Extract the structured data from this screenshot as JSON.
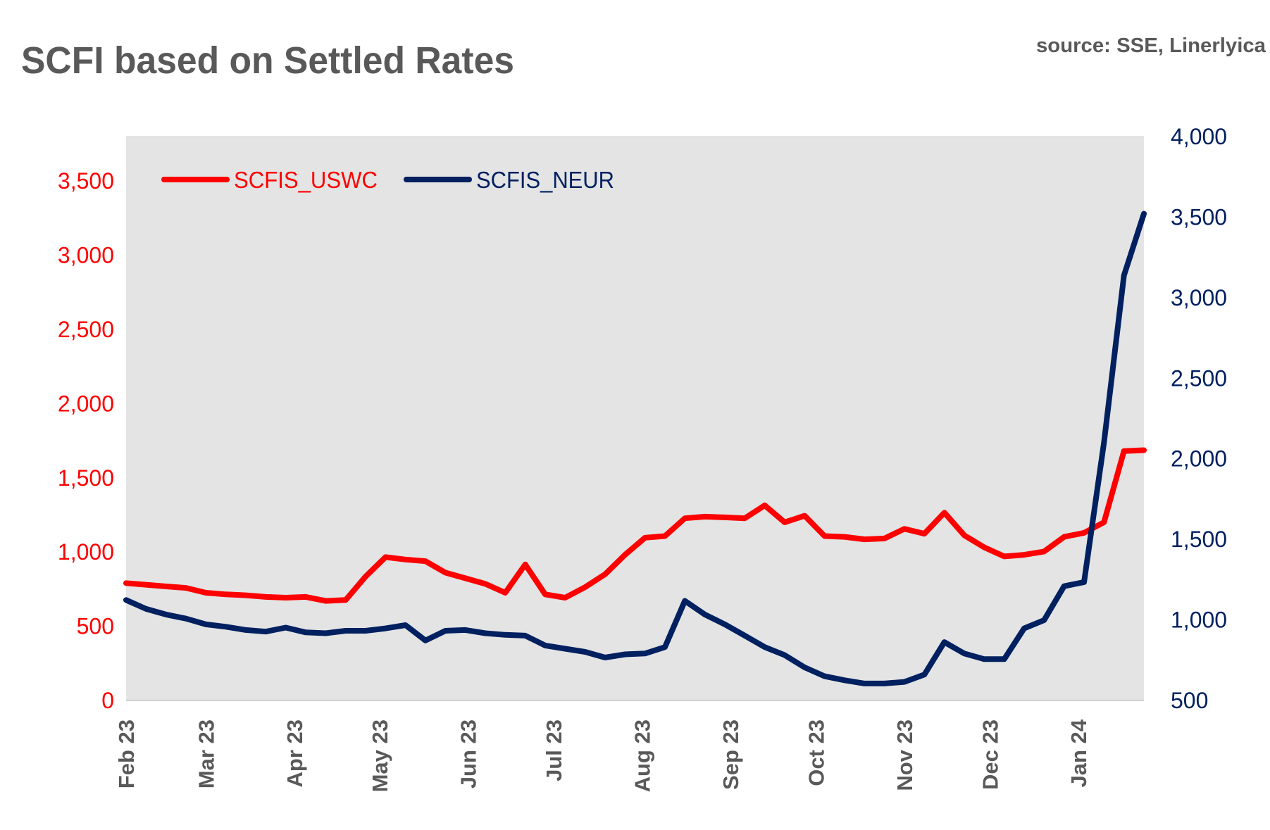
{
  "chart_data": {
    "type": "line",
    "title": "SCFI based on Settled Rates",
    "source": "source: SSE, Linerlyica",
    "background": "#e4e4e4",
    "grid": false,
    "legend_position": "top-left",
    "x": [
      "2023-02-01",
      "2023-02-08",
      "2023-02-15",
      "2023-02-22",
      "2023-03-01",
      "2023-03-08",
      "2023-03-15",
      "2023-03-22",
      "2023-03-29",
      "2023-04-05",
      "2023-04-12",
      "2023-04-19",
      "2023-04-26",
      "2023-05-03",
      "2023-05-10",
      "2023-05-17",
      "2023-05-24",
      "2023-05-31",
      "2023-06-07",
      "2023-06-14",
      "2023-06-21",
      "2023-06-28",
      "2023-07-05",
      "2023-07-12",
      "2023-07-19",
      "2023-07-26",
      "2023-08-02",
      "2023-08-09",
      "2023-08-16",
      "2023-08-23",
      "2023-08-30",
      "2023-09-06",
      "2023-09-13",
      "2023-09-20",
      "2023-09-27",
      "2023-10-04",
      "2023-10-11",
      "2023-10-18",
      "2023-10-25",
      "2023-11-01",
      "2023-11-08",
      "2023-11-15",
      "2023-11-22",
      "2023-11-29",
      "2023-12-06",
      "2023-12-13",
      "2023-12-20",
      "2023-12-27",
      "2024-01-03",
      "2024-01-10",
      "2024-01-17",
      "2024-01-24"
    ],
    "x_ticks": [
      {
        "label": "Feb 23",
        "date": "2023-02-01"
      },
      {
        "label": "Mar 23",
        "date": "2023-03-01"
      },
      {
        "label": "Apr 23",
        "date": "2023-04-01"
      },
      {
        "label": "May 23",
        "date": "2023-05-01"
      },
      {
        "label": "Jun 23",
        "date": "2023-06-01"
      },
      {
        "label": "Jul 23",
        "date": "2023-07-01"
      },
      {
        "label": "Aug 23",
        "date": "2023-08-01"
      },
      {
        "label": "Sep 23",
        "date": "2023-09-01"
      },
      {
        "label": "Oct 23",
        "date": "2023-10-01"
      },
      {
        "label": "Nov 23",
        "date": "2023-11-01"
      },
      {
        "label": "Dec 23",
        "date": "2023-12-01"
      },
      {
        "label": "Jan 24",
        "date": "2024-01-01"
      }
    ],
    "y_left": {
      "ylim": [
        0,
        3800
      ],
      "ticks": [
        0,
        500,
        1000,
        1500,
        2000,
        2500,
        3000,
        3500
      ],
      "tick_labels": [
        "0",
        "500",
        "1,000",
        "1,500",
        "2,000",
        "2,500",
        "3,000",
        "3,500"
      ],
      "color": "#ff0000"
    },
    "y_right": {
      "ylim": [
        500,
        4000
      ],
      "ticks": [
        500,
        1000,
        1500,
        2000,
        2500,
        3000,
        3500,
        4000
      ],
      "tick_labels": [
        "500",
        "1,000",
        "1,500",
        "2,000",
        "2,500",
        "3,000",
        "3,500",
        "4,000"
      ],
      "color": "#002060"
    },
    "series": [
      {
        "name": "SCFIS_USWC",
        "axis": "left",
        "color": "#ff0000",
        "values": [
          786,
          775,
          764,
          754,
          721,
          710,
          704,
          693,
          688,
          693,
          666,
          672,
          830,
          961,
          945,
          934,
          857,
          819,
          781,
          721,
          912,
          710,
          688,
          759,
          846,
          977,
          1092,
          1103,
          1223,
          1234,
          1229,
          1223,
          1310,
          1196,
          1240,
          1103,
          1098,
          1081,
          1087,
          1152,
          1119,
          1261,
          1108,
          1027,
          966,
          977,
          999,
          1098,
          1125,
          1196,
          1676,
          1682
        ]
      },
      {
        "name": "SCFIS_NEUR",
        "axis": "right",
        "color": "#002060",
        "values": [
          1119,
          1064,
          1029,
          1004,
          968,
          953,
          933,
          923,
          948,
          918,
          913,
          928,
          928,
          943,
          963,
          868,
          928,
          933,
          913,
          903,
          898,
          837,
          817,
          797,
          762,
          782,
          787,
          827,
          1114,
          1029,
          968,
          898,
          827,
          777,
          701,
          646,
          621,
          601,
          601,
          611,
          656,
          858,
          787,
          752,
          752,
          943,
          994,
          1205,
          1230,
          2096,
          3134,
          3517
        ]
      }
    ]
  }
}
